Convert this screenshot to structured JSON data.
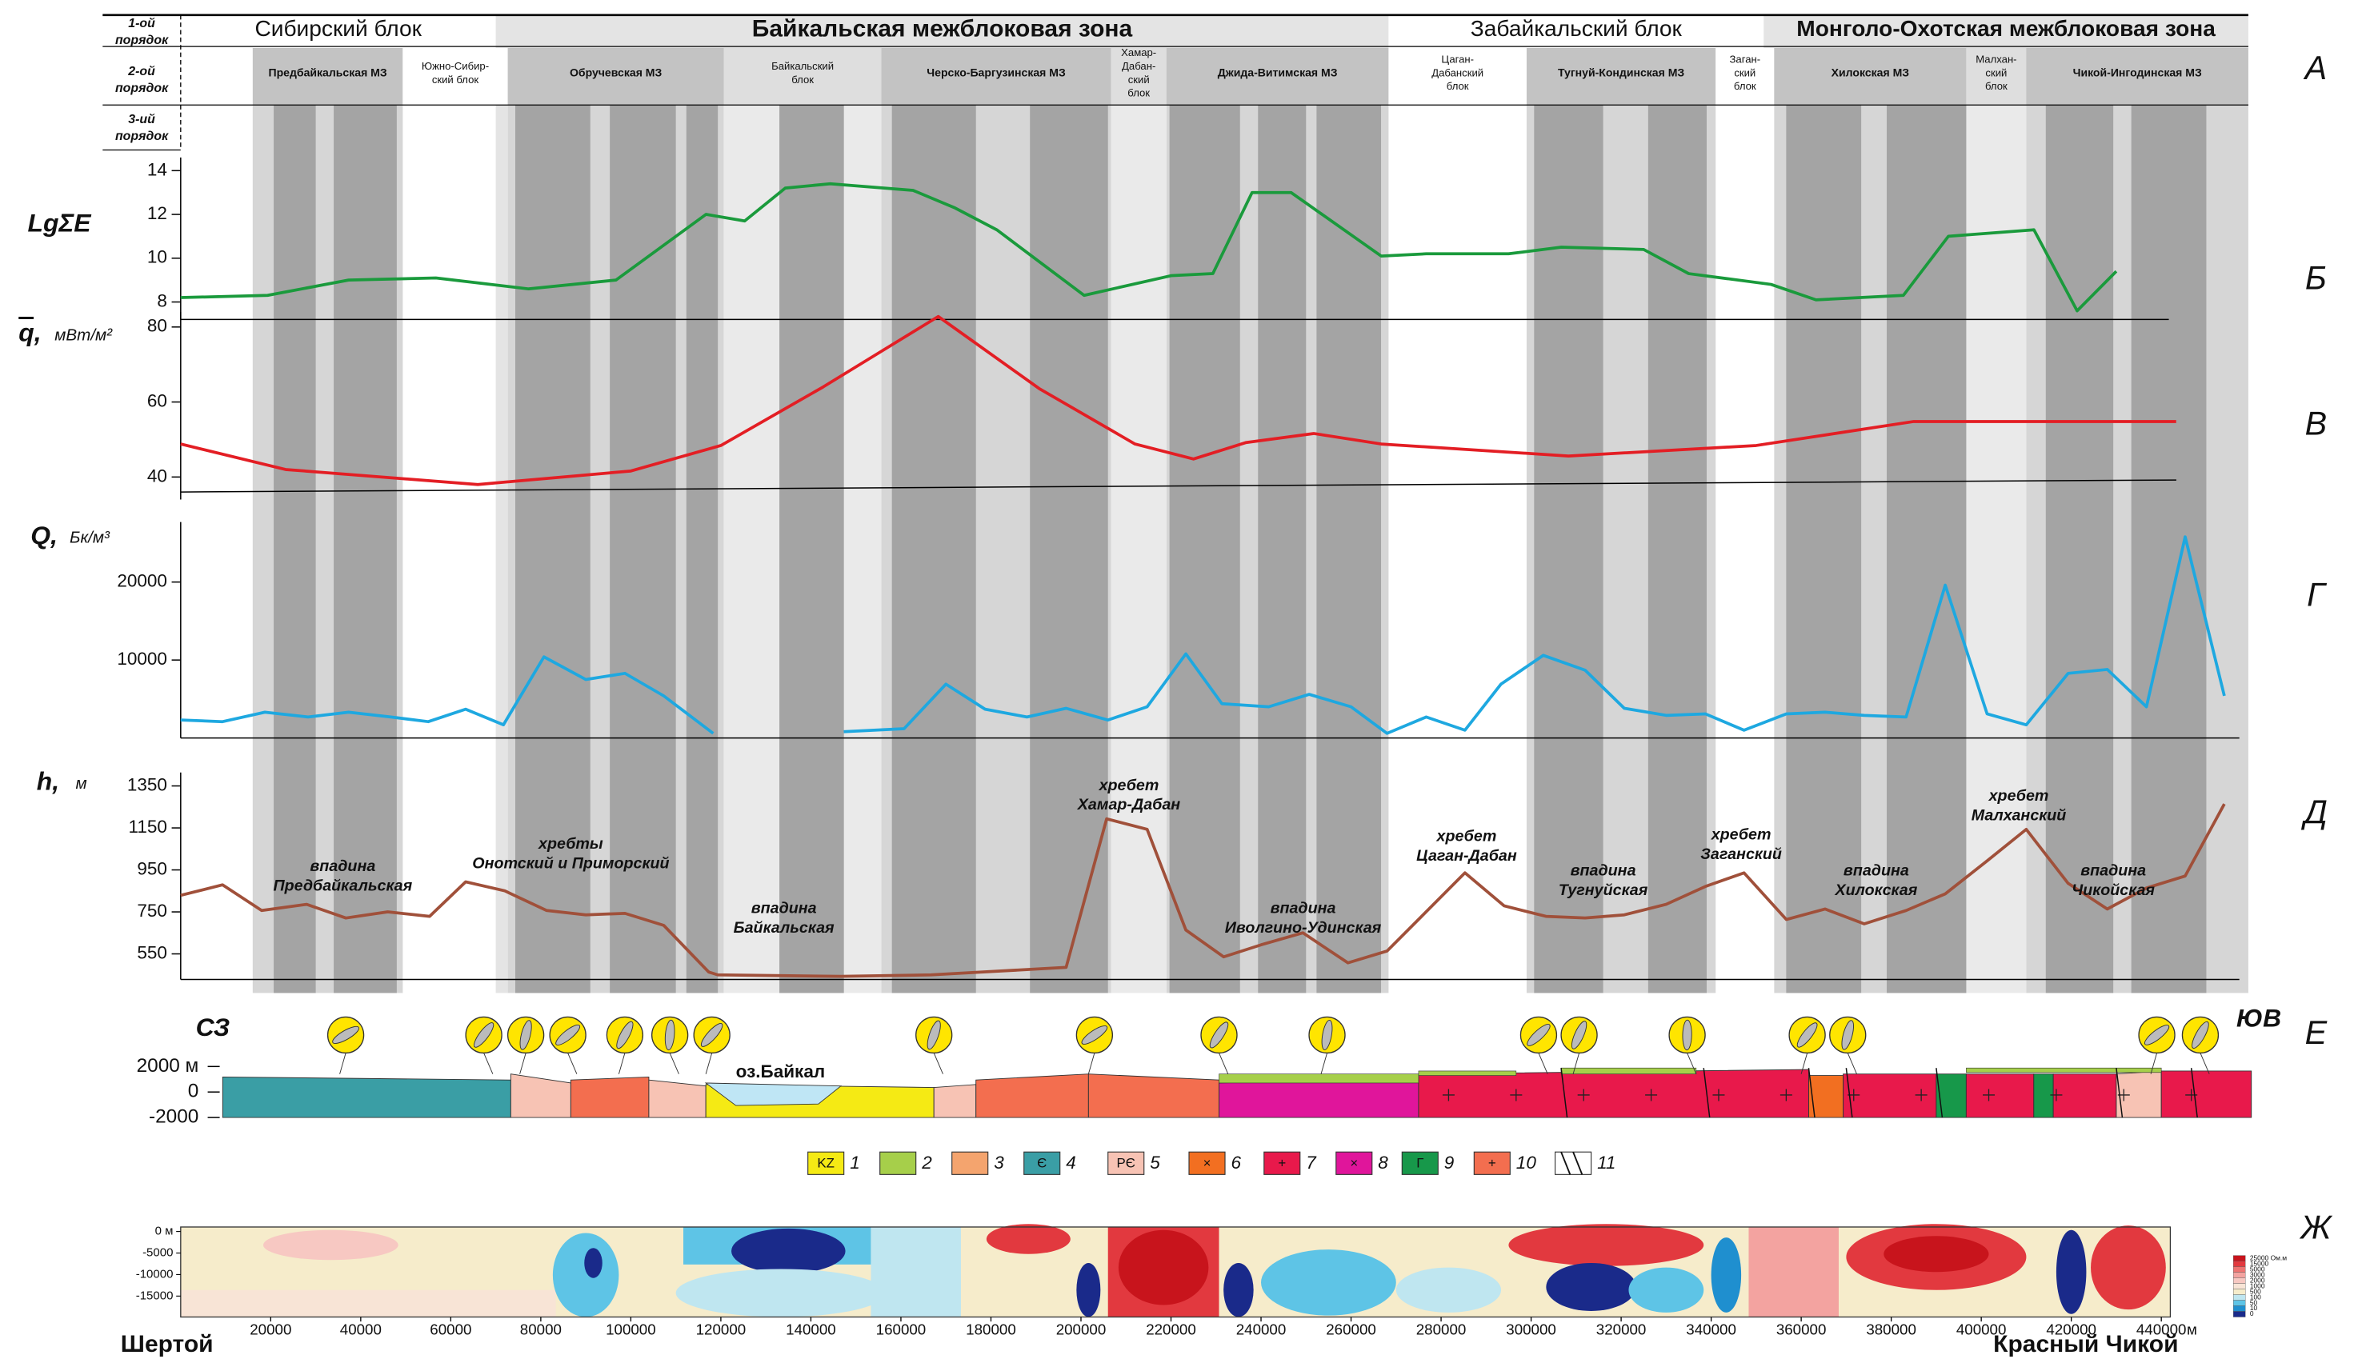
{
  "header": {
    "order_labels": [
      [
        "1-ой",
        "порядок"
      ],
      [
        "2-ой",
        "порядок"
      ],
      [
        "3-ий",
        "порядок"
      ]
    ],
    "zones_1": [
      "Сибирский блок",
      "Байкальская  межблоковая зона",
      "Забайкальский блок",
      "Монголо-Охотская межблоковая зона"
    ],
    "zones_2": [
      [
        "Предбайкальская МЗ"
      ],
      [
        "Южно-Сибир-",
        "ский блок"
      ],
      [
        "Обручевская МЗ"
      ],
      [
        "Байкальский",
        "блок"
      ],
      [
        "Черско-Баргузинская МЗ"
      ],
      [
        "Хамар-",
        "Дабан-",
        "ский",
        "блок"
      ],
      [
        "Джида-Витимская МЗ"
      ],
      [
        "Цаган-",
        "Дабанский",
        "блок"
      ],
      [
        "Тугнуй-Кондинская МЗ"
      ],
      [
        "Заган-",
        "ский",
        "блок"
      ],
      [
        "Хилокская МЗ"
      ],
      [
        "Малхан-",
        "ский",
        "блок"
      ],
      [
        "Чикой-Ингодинская МЗ"
      ]
    ]
  },
  "panel_letters": [
    "А",
    "Б",
    "В",
    "Г",
    "Д",
    "Е",
    "Ж"
  ],
  "chart_data": [
    {
      "type": "line",
      "y_label": "LgΣE",
      "xlim": [
        0,
        460000
      ],
      "ylim": [
        7.2,
        14.6
      ],
      "yticks": [
        8,
        10,
        12,
        14
      ],
      "color": "#1a9a3c",
      "x": [
        0,
        19300,
        37300,
        56700,
        77300,
        96700,
        116700,
        125300,
        134300,
        144300,
        162700,
        172000,
        181300,
        200700,
        220000,
        229300,
        238000,
        246700,
        266700,
        276700,
        295000,
        306700,
        325000,
        335000,
        353300,
        363300,
        382700,
        392700,
        411700,
        421300,
        430000
      ],
      "values": [
        8.2,
        8.3,
        9.0,
        9.1,
        8.6,
        9.0,
        12.0,
        11.7,
        13.2,
        13.4,
        13.1,
        12.3,
        11.3,
        8.3,
        9.2,
        9.3,
        13.0,
        13.0,
        10.1,
        10.2,
        10.2,
        10.5,
        10.4,
        9.3,
        8.8,
        8.1,
        8.3,
        11.0,
        11.3,
        7.6,
        9.4
      ]
    },
    {
      "type": "line",
      "y_label": "q,",
      "y_unit": "мВт/м²",
      "xlim": [
        0,
        460000
      ],
      "ylim": [
        34,
        84
      ],
      "yticks": [
        40,
        60,
        80
      ],
      "color": "#e31e24",
      "x": [
        0,
        23300,
        66000,
        100000,
        120000,
        142700,
        168300,
        190700,
        212000,
        225000,
        236700,
        251700,
        266700,
        308300,
        350000,
        385000,
        443300
      ],
      "values": [
        48.8,
        42,
        38,
        41.6,
        48.4,
        64,
        82.8,
        63.6,
        48.8,
        44.8,
        49.2,
        51.6,
        48.8,
        45.6,
        48.4,
        54.8,
        54.8
      ]
    },
    {
      "type": "line",
      "y_label": "Q,",
      "y_unit": "Бк/м³",
      "xlim": [
        0,
        460000
      ],
      "ylim": [
        0,
        27700
      ],
      "yticks": [
        10000,
        20000
      ],
      "color": "#1ea8e0",
      "x": [
        0,
        9300,
        18700,
        28300,
        37300,
        46700,
        55000,
        63300,
        71700,
        80700,
        90000,
        98700,
        107300,
        118300,
        null,
        147300,
        160700,
        170000,
        178700,
        188000,
        196700,
        206000,
        214700,
        223300,
        231300,
        241700,
        250700,
        260000,
        268000,
        276700,
        285300,
        293300,
        302700,
        312000,
        320700,
        330000,
        338700,
        347300,
        356700,
        365300,
        374000,
        383300,
        392000,
        401300,
        410000,
        419300,
        428000,
        436700,
        445300,
        454000
      ],
      "values": [
        2300,
        2100,
        3300,
        2700,
        3300,
        2700,
        2100,
        3700,
        1700,
        10400,
        7500,
        8300,
        5400,
        600,
        null,
        800,
        1200,
        6900,
        3700,
        2700,
        3800,
        2300,
        4000,
        10800,
        4400,
        4000,
        5600,
        4000,
        600,
        2700,
        1000,
        6900,
        10600,
        8700,
        3800,
        2900,
        3100,
        1000,
        3100,
        3300,
        2900,
        2700,
        19600,
        3100,
        1700,
        8300,
        8800,
        4000,
        25800,
        5400
      ]
    },
    {
      "type": "line",
      "y_label": "h,",
      "y_unit": "м",
      "xlim": [
        0,
        460000
      ],
      "ylim": [
        428,
        1414
      ],
      "yticks": [
        550,
        750,
        950,
        1150,
        1350
      ],
      "color": "#a0503a",
      "x": [
        0,
        9300,
        18000,
        28000,
        36700,
        46000,
        55300,
        63300,
        72000,
        81300,
        90000,
        98700,
        107300,
        117300,
        119300,
        146700,
        166700,
        178300,
        196700,
        205700,
        214700,
        223300,
        231700,
        240000,
        249300,
        259300,
        268000,
        285300,
        294000,
        303300,
        312000,
        320700,
        330000,
        338700,
        347300,
        356700,
        365300,
        374000,
        383300,
        392000,
        401300,
        410000,
        419300,
        428000,
        436700,
        445300,
        454000
      ],
      "values": [
        829,
        879,
        757,
        786,
        721,
        750,
        729,
        893,
        850,
        757,
        736,
        743,
        686,
        464,
        450,
        443,
        450,
        464,
        486,
        1193,
        1143,
        664,
        536,
        593,
        650,
        507,
        564,
        936,
        779,
        729,
        721,
        736,
        786,
        871,
        936,
        714,
        764,
        693,
        757,
        836,
        993,
        1143,
        886,
        764,
        864,
        921,
        1264
      ],
      "annotations": [
        [
          "впадина",
          "Предбайкальская"
        ],
        [
          "хребты",
          "Онотский и Приморский"
        ],
        [
          "впадина",
          "Байкальская"
        ],
        [
          "хребет",
          "Хамар-Дабан"
        ],
        [
          "впадина",
          "Иволгино-Удинская"
        ],
        [
          "хребет",
          "Цаган-Дабан"
        ],
        [
          "впадина",
          "Тугнуйская"
        ],
        [
          "хребет",
          "Заганский"
        ],
        [
          "впадина",
          "Хилокская"
        ],
        [
          "хребет",
          "Малханский"
        ],
        [
          "впадина",
          "Чикойская"
        ]
      ]
    }
  ],
  "section": {
    "nw_label": "СЗ",
    "se_label": "ЮВ",
    "lake_label": "оз.Байкал",
    "ylim": [
      -2000,
      2000
    ],
    "yticks": [
      {
        "value": 2000,
        "label": "2000 м"
      },
      0,
      -2000
    ],
    "legend": [
      {
        "symbol": "KZ",
        "label": "1",
        "color": "#f5ea14"
      },
      {
        "label": "2",
        "color": "#a6cf4a"
      },
      {
        "label": "3",
        "color": "#f4a46e"
      },
      {
        "symbol": "Є",
        "label": "4",
        "color": "#3a9ea5"
      },
      {
        "symbol": "PЄ",
        "label": "5",
        "color": "#f7c3b4"
      },
      {
        "symbol": "×",
        "label": "6",
        "color": "#f26f21"
      },
      {
        "symbol": "+",
        "label": "7",
        "color": "#e8194b"
      },
      {
        "symbol": "×",
        "label": "8",
        "color": "#e0159b"
      },
      {
        "symbol": "Г",
        "label": "9",
        "color": "#17984a"
      },
      {
        "symbol": "+",
        "label": "10",
        "color": "#f36e4f"
      },
      {
        "label": "11",
        "color": "#ffffff"
      }
    ]
  },
  "resistivity": {
    "xlim": [
      0,
      442000
    ],
    "xticks": [
      20000,
      40000,
      60000,
      80000,
      100000,
      120000,
      140000,
      160000,
      180000,
      200000,
      220000,
      240000,
      260000,
      280000,
      300000,
      320000,
      340000,
      360000,
      380000,
      400000,
      420000,
      440000
    ],
    "x_unit": "м",
    "ylim": [
      -20000,
      1000
    ],
    "yticks": [
      {
        "value": 0,
        "label": "0 м"
      },
      -5000,
      -10000,
      -15000
    ],
    "scale": [
      {
        "value": 25000,
        "label": "25000 Ом.м"
      },
      15000,
      5000,
      3000,
      2000,
      1000,
      500,
      100,
      50,
      10,
      0
    ],
    "scale_colors": [
      "#c8141c",
      "#e2393f",
      "#ee7472",
      "#f3a3a0",
      "#f7c8c2",
      "#f8e4d6",
      "#f6eccb",
      "#bfe6f0",
      "#5ec4e6",
      "#1f8fcf",
      "#1a2a8a"
    ],
    "left_label": "Шертой",
    "right_label": "Красный Чикой"
  }
}
